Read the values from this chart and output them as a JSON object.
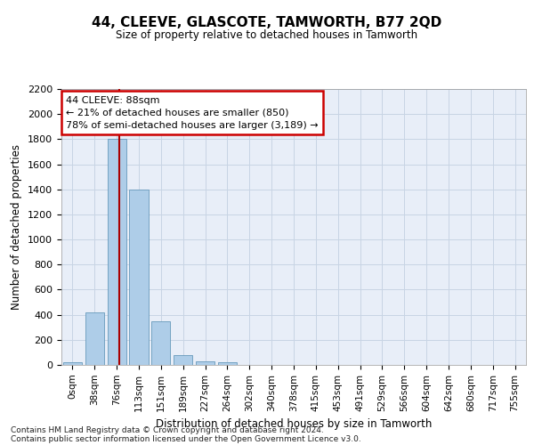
{
  "title": "44, CLEEVE, GLASCOTE, TAMWORTH, B77 2QD",
  "subtitle": "Size of property relative to detached houses in Tamworth",
  "xlabel": "Distribution of detached houses by size in Tamworth",
  "ylabel": "Number of detached properties",
  "bar_labels": [
    "0sqm",
    "38sqm",
    "76sqm",
    "113sqm",
    "151sqm",
    "189sqm",
    "227sqm",
    "264sqm",
    "302sqm",
    "340sqm",
    "378sqm",
    "415sqm",
    "453sqm",
    "491sqm",
    "529sqm",
    "566sqm",
    "604sqm",
    "642sqm",
    "680sqm",
    "717sqm",
    "755sqm"
  ],
  "bar_values": [
    20,
    420,
    1800,
    1400,
    350,
    80,
    25,
    20,
    0,
    0,
    0,
    0,
    0,
    0,
    0,
    0,
    0,
    0,
    0,
    0,
    0
  ],
  "bar_color": "#aecde8",
  "bar_edgecolor": "#6699bb",
  "vline_x": 2.1,
  "vline_color": "#aa0000",
  "annotation_text": "44 CLEEVE: 88sqm\n← 21% of detached houses are smaller (850)\n78% of semi-detached houses are larger (3,189) →",
  "annotation_box_color": "#ffffff",
  "annotation_box_edgecolor": "#cc0000",
  "ylim": [
    0,
    2200
  ],
  "yticks": [
    0,
    200,
    400,
    600,
    800,
    1000,
    1200,
    1400,
    1600,
    1800,
    2000,
    2200
  ],
  "grid_color": "#c8d4e4",
  "background_color": "#e8eef8",
  "footer_line1": "Contains HM Land Registry data © Crown copyright and database right 2024.",
  "footer_line2": "Contains public sector information licensed under the Open Government Licence v3.0."
}
